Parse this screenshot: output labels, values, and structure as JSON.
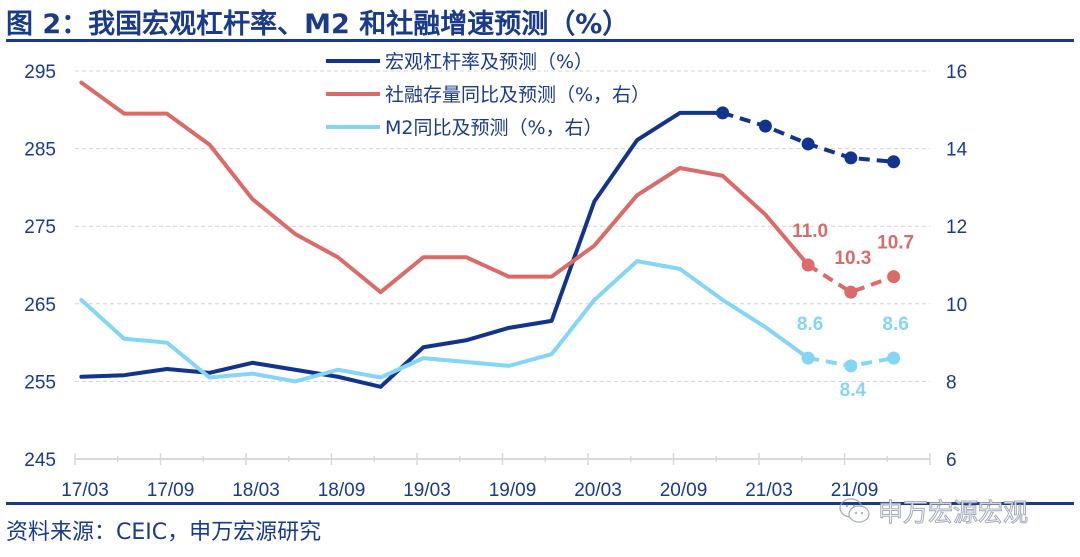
{
  "title": "图 2：我国宏观杠杆率、M2 和社融增速预测（%）",
  "source": "资料来源：CEIC，申万宏源研究",
  "watermark": "申万宏源宏观",
  "chart_data": {
    "type": "line",
    "title": "图 2：我国宏观杠杆率、M2 和社融增速预测（%）",
    "xlabel": "",
    "ylabel": "",
    "categories": [
      "17/03",
      "17/06",
      "17/09",
      "17/12",
      "18/03",
      "18/06",
      "18/09",
      "18/12",
      "19/03",
      "19/06",
      "19/09",
      "19/12",
      "20/03",
      "20/06",
      "20/09",
      "20/12",
      "21/03",
      "21/06",
      "21/09",
      "21/12"
    ],
    "x_tick_labels": [
      "17/03",
      "17/09",
      "18/03",
      "18/09",
      "19/03",
      "19/09",
      "20/03",
      "20/09",
      "21/03",
      "21/09"
    ],
    "y_left": {
      "ylim": [
        245,
        295
      ],
      "ticks": [
        245,
        255,
        265,
        275,
        285,
        295
      ]
    },
    "y_right": {
      "ylim": [
        6,
        16
      ],
      "ticks": [
        6,
        8,
        10,
        12,
        14,
        16
      ]
    },
    "grid": true,
    "legend_position": "top-center",
    "series": [
      {
        "name": "宏观杠杆率及预测（%）",
        "axis": "left",
        "color": "#12348f",
        "values": [
          255.6,
          255.8,
          256.6,
          256.1,
          257.4,
          256.5,
          255.6,
          254.3,
          259.4,
          260.3,
          261.9,
          262.8,
          278.2,
          286.1,
          289.6,
          289.6,
          287.9,
          285.6,
          283.8,
          283.3
        ],
        "forecast_start_index": 15,
        "labels": []
      },
      {
        "name": "社融存量同比及预测（%，右）",
        "axis": "right",
        "color": "#db6b68",
        "values": [
          15.7,
          14.9,
          14.9,
          14.1,
          12.7,
          11.8,
          11.2,
          10.3,
          11.2,
          11.2,
          10.7,
          10.7,
          11.5,
          12.8,
          13.5,
          13.3,
          12.3,
          11.0,
          10.3,
          10.7
        ],
        "forecast_start_index": 17,
        "labels": [
          {
            "index": 17,
            "text": "11.0",
            "position": "above"
          },
          {
            "index": 18,
            "text": "10.3",
            "position": "above"
          },
          {
            "index": 19,
            "text": "10.7",
            "position": "above"
          }
        ]
      },
      {
        "name": "M2同比及预测（%，右）",
        "axis": "right",
        "color": "#85d5f7",
        "values": [
          10.1,
          9.1,
          9.0,
          8.1,
          8.2,
          8.0,
          8.3,
          8.1,
          8.6,
          8.5,
          8.4,
          8.7,
          10.1,
          11.1,
          10.9,
          10.1,
          9.4,
          8.6,
          8.4,
          8.6
        ],
        "forecast_start_index": 17,
        "labels": [
          {
            "index": 17,
            "text": "8.6",
            "position": "above"
          },
          {
            "index": 18,
            "text": "8.4",
            "position": "below"
          },
          {
            "index": 19,
            "text": "8.6",
            "position": "above"
          }
        ]
      }
    ]
  }
}
